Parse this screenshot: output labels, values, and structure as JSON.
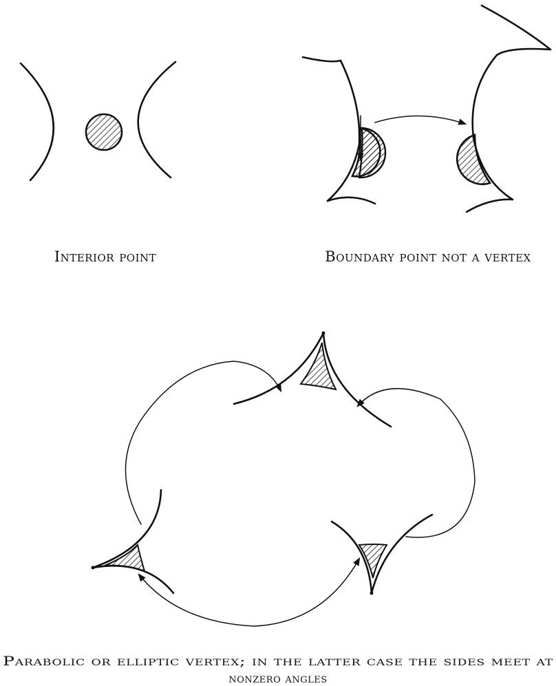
{
  "captions": {
    "interior": "Interior point",
    "boundary": "Boundary point not a vertex",
    "vertex_line1": "Parabolic or elliptic vertex; in the latter case the sides meet at",
    "vertex_line2": "nonzero angles"
  }
}
